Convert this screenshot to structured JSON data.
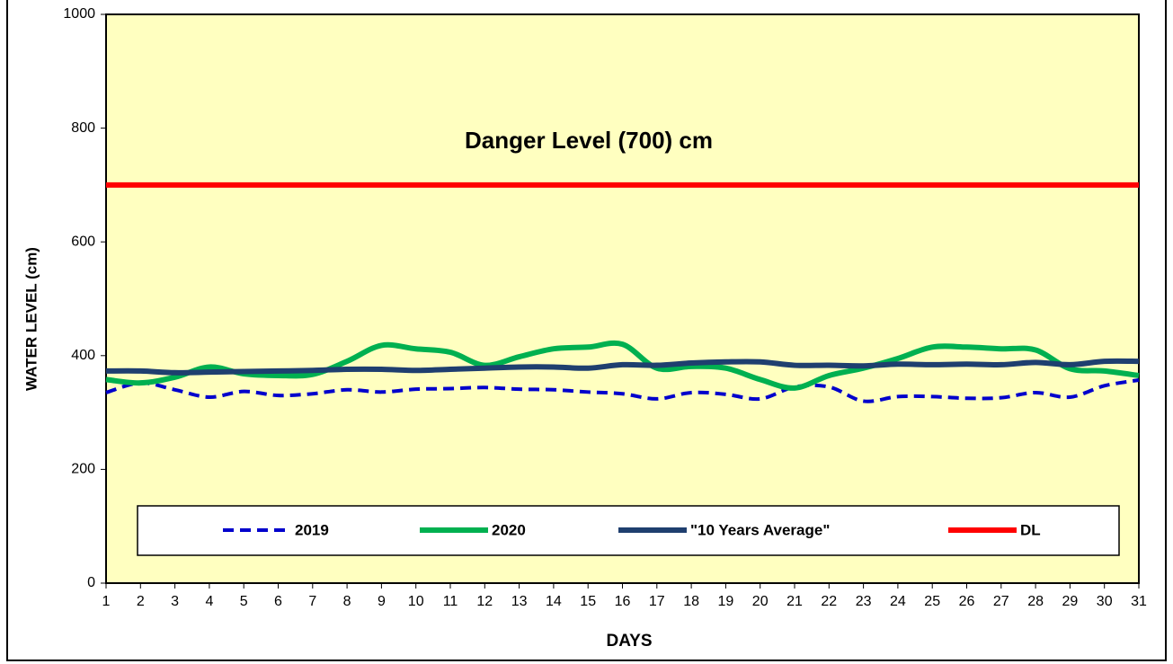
{
  "chart_data": {
    "type": "line",
    "annotation": "Danger Level (700) cm",
    "x_label": "DAYS",
    "y_label": "WATER LEVEL (cm)",
    "x": [
      1,
      2,
      3,
      4,
      5,
      6,
      7,
      8,
      9,
      10,
      11,
      12,
      13,
      14,
      15,
      16,
      17,
      18,
      19,
      20,
      21,
      22,
      23,
      24,
      25,
      26,
      27,
      28,
      29,
      30,
      31
    ],
    "xlim": [
      1,
      31
    ],
    "xticks": [
      1,
      2,
      3,
      4,
      5,
      6,
      7,
      8,
      9,
      10,
      11,
      12,
      13,
      14,
      15,
      16,
      17,
      18,
      19,
      20,
      21,
      22,
      23,
      24,
      25,
      26,
      27,
      28,
      29,
      30,
      31
    ],
    "ylim": [
      0,
      1000
    ],
    "yticks": [
      0,
      200,
      400,
      600,
      800,
      1000
    ],
    "background": "#ffffc0",
    "series": [
      {
        "name": "2019",
        "color": "#0000cc",
        "dashed": true,
        "values": [
          335,
          352,
          340,
          327,
          337,
          330,
          333,
          340,
          336,
          341,
          342,
          344,
          341,
          340,
          336,
          333,
          324,
          335,
          332,
          324,
          345,
          345,
          320,
          328,
          328,
          325,
          326,
          335,
          327,
          347,
          357
        ]
      },
      {
        "name": "2020",
        "color": "#00b050",
        "dashed": false,
        "values": [
          358,
          352,
          362,
          380,
          368,
          365,
          367,
          390,
          418,
          412,
          406,
          383,
          398,
          412,
          415,
          420,
          378,
          381,
          378,
          358,
          343,
          365,
          378,
          395,
          415,
          415,
          412,
          410,
          377,
          373,
          365
        ]
      },
      {
        "name": "\"10 Years Average\"",
        "color": "#1f3f6f",
        "dashed": false,
        "values": [
          373,
          373,
          370,
          371,
          372,
          373,
          374,
          376,
          376,
          374,
          376,
          378,
          380,
          380,
          378,
          384,
          383,
          387,
          389,
          389,
          383,
          383,
          382,
          385,
          384,
          385,
          384,
          388,
          384,
          390,
          390
        ]
      },
      {
        "name": "DL",
        "color": "#ff0000",
        "dashed": false,
        "values": [
          700,
          700,
          700,
          700,
          700,
          700,
          700,
          700,
          700,
          700,
          700,
          700,
          700,
          700,
          700,
          700,
          700,
          700,
          700,
          700,
          700,
          700,
          700,
          700,
          700,
          700,
          700,
          700,
          700,
          700,
          700
        ]
      }
    ]
  }
}
